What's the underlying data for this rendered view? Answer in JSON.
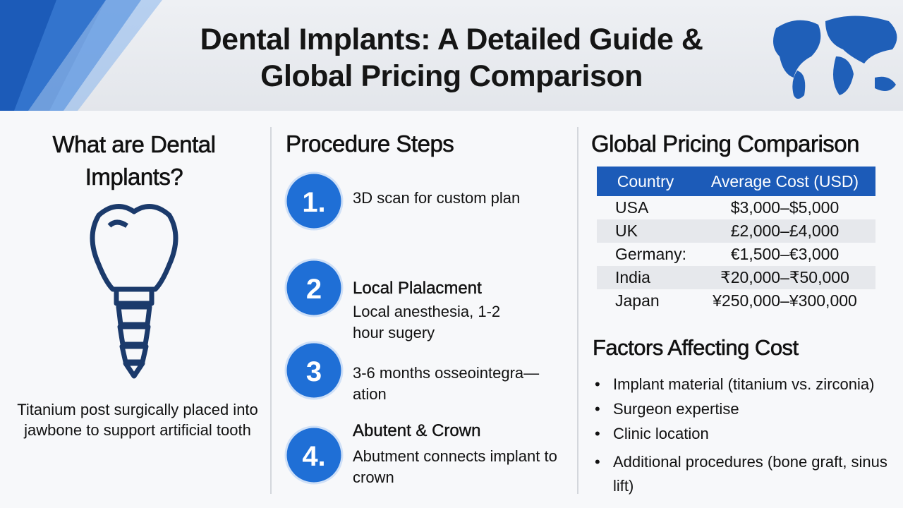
{
  "header": {
    "title": [
      "Dental Implants: A Detailed Guide &",
      "Global Pricing Comparison"
    ]
  },
  "what": {
    "heading": "What are Dental Implants?",
    "caption": "Titanium post surgically placed into jawbone to support artificial tooth"
  },
  "steps": {
    "heading": "Procedure Steps",
    "items": [
      {
        "number": "1.",
        "text": "3D scan for custom plan"
      },
      {
        "number": "2",
        "title": "Local Plalacment",
        "text": "Local anesthesia, 1-2 hour sugery"
      },
      {
        "number": "3",
        "text": "3-6 months osseointegra— ation"
      },
      {
        "number": "4.",
        "title": "Abutent & Crown",
        "text": "Abutment connects implant to crown"
      }
    ]
  },
  "pricing": {
    "heading": "Global Pricing Comparison",
    "table": {
      "columns": [
        "Country",
        "Average Cost (USD)"
      ],
      "rows": [
        [
          "USA",
          "$3,000–$5,000"
        ],
        [
          "UK",
          "£2,000–£4,000"
        ],
        [
          "Germany:",
          "€1,500–€3,000"
        ],
        [
          "India",
          "₹20,000–₹50,000"
        ],
        [
          "Japan",
          "¥250,000–¥300,000"
        ]
      ]
    },
    "factors_heading": "Factors Affecting Cost",
    "factors": [
      "Implant material (titanium vs. zirconia)",
      "Surgeon expertise",
      "Clinic location",
      "Additional procedures (bone graft, sinus lift)"
    ]
  }
}
